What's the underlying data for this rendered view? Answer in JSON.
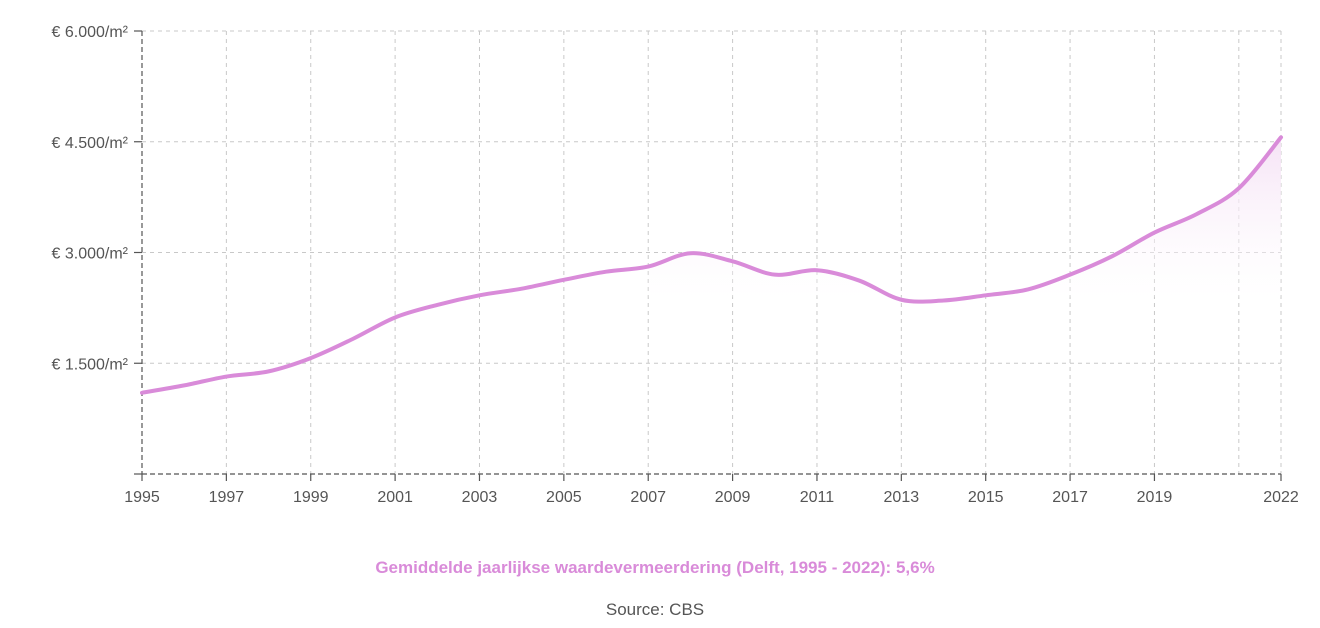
{
  "colors": {
    "line": "#d98bd9",
    "fill": "#f7e8f7",
    "grid": "#c8c8c8",
    "axis": "#555555",
    "text": "#555555",
    "subtitle": "#d98bd9"
  },
  "subtitle": "Gemiddelde jaarlijkse waardevermeerdering (Delft, 1995 - 2022): 5,6%",
  "source": "Source: CBS",
  "chart_data": {
    "type": "area",
    "x": [
      1995,
      1996,
      1997,
      1998,
      1999,
      2000,
      2001,
      2002,
      2003,
      2004,
      2005,
      2006,
      2007,
      2008,
      2009,
      2010,
      2011,
      2012,
      2013,
      2014,
      2015,
      2016,
      2017,
      2018,
      2019,
      2020,
      2021,
      2022
    ],
    "series": [
      {
        "values": [
          1100,
          1200,
          1320,
          1390,
          1570,
          1830,
          2120,
          2290,
          2420,
          2510,
          2630,
          2740,
          2810,
          2990,
          2880,
          2700,
          2760,
          2620,
          2360,
          2350,
          2420,
          2500,
          2700,
          2950,
          3270,
          3520,
          3870,
          4560
        ]
      }
    ],
    "xlim": [
      1995,
      2022
    ],
    "ylim": [
      0,
      6000
    ],
    "x_ticks": [
      "1995",
      "1997",
      "1999",
      "2001",
      "2003",
      "2005",
      "2007",
      "2009",
      "2011",
      "2013",
      "2015",
      "2017",
      "2019",
      "2022"
    ],
    "y_ticks": [
      {
        "value": 1500,
        "label": "€ 1.500/m²"
      },
      {
        "value": 3000,
        "label": "€ 3.000/m²"
      },
      {
        "value": 4500,
        "label": "€ 4.500/m²"
      },
      {
        "value": 6000,
        "label": "€ 6.000/m²"
      }
    ],
    "x_grid_years": [
      1995,
      1997,
      1999,
      2001,
      2003,
      2005,
      2007,
      2009,
      2011,
      2013,
      2015,
      2017,
      2019,
      2021,
      2022
    ],
    "grid": true,
    "shaded_region": {
      "from": 2007,
      "to": 2022,
      "floor": 2400
    }
  }
}
